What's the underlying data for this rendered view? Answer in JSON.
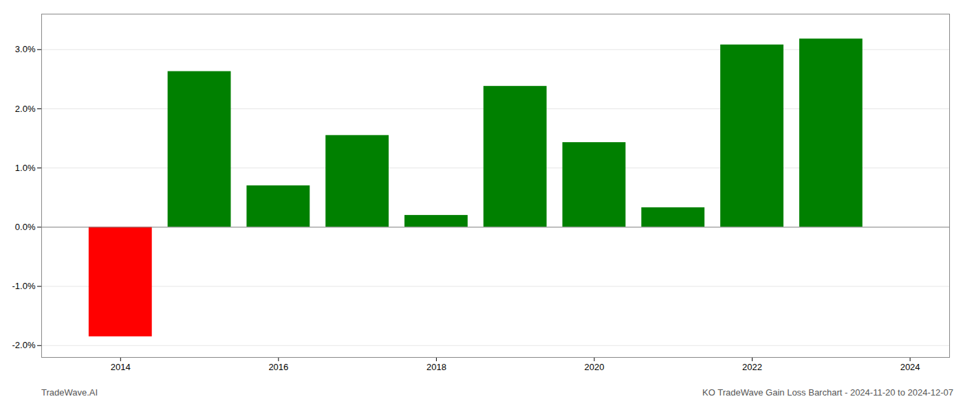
{
  "chart_data": {
    "type": "bar",
    "title": "KO TradeWave Gain Loss Barchart - 2024-11-20 to 2024-12-07",
    "annotations": [
      "TradeWave.AI"
    ],
    "x": [
      2014,
      2015,
      2016,
      2017,
      2018,
      2019,
      2020,
      2021,
      2022,
      2023
    ],
    "values": [
      -0.0185,
      0.0263,
      0.007,
      0.0155,
      0.002,
      0.0238,
      0.0143,
      0.0033,
      0.0308,
      0.0318
    ],
    "colors": [
      "#ff0000",
      "#008000",
      "#008000",
      "#008000",
      "#008000",
      "#008000",
      "#008000",
      "#008000",
      "#008000",
      "#008000"
    ],
    "xlim": [
      2013.0,
      2024.5
    ],
    "xticks": [
      2014,
      2016,
      2018,
      2020,
      2022,
      2024
    ],
    "ylim": [
      -0.022,
      0.036
    ],
    "yticks": [
      {
        "value": -0.02,
        "label": "-2.0%"
      },
      {
        "value": -0.01,
        "label": "-1.0%"
      },
      {
        "value": 0.0,
        "label": "0.0%"
      },
      {
        "value": 0.01,
        "label": "1.0%"
      },
      {
        "value": 0.02,
        "label": "2.0%"
      },
      {
        "value": 0.03,
        "label": "3.0%"
      }
    ],
    "grid": true
  }
}
